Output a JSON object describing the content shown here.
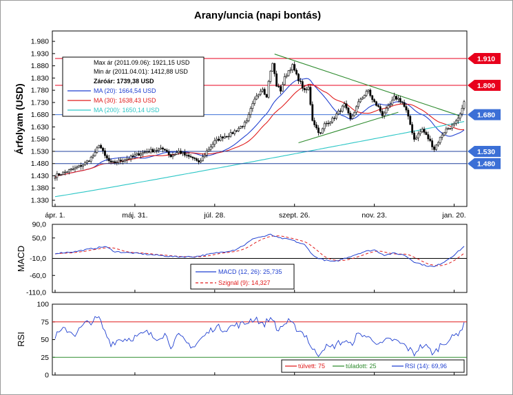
{
  "chart_data": [
    {
      "type": "candlestick",
      "title": "Arany/uncia (napi bontás)",
      "ylabel": "Árfolyam (USD)",
      "ylim": [
        1330,
        2000
      ],
      "yticks": [
        "1.980",
        "1.930",
        "1.880",
        "1.830",
        "1.780",
        "1.730",
        "1.680",
        "1.630",
        "1.580",
        "1.530",
        "1.480",
        "1.430",
        "1.380",
        "1.330"
      ],
      "ytick_values": [
        1980,
        1930,
        1880,
        1830,
        1780,
        1730,
        1680,
        1630,
        1580,
        1530,
        1480,
        1430,
        1380,
        1330
      ],
      "xticks": [
        "ápr. 1.",
        "máj. 31.",
        "júl. 28.",
        "szept. 26.",
        "nov. 23.",
        "jan. 20."
      ],
      "xtick_index": [
        0,
        40,
        80,
        120,
        160,
        200
      ],
      "n_days": 205,
      "anchors": [
        [
          0,
          1430
        ],
        [
          5,
          1445
        ],
        [
          10,
          1460
        ],
        [
          15,
          1480
        ],
        [
          20,
          1520
        ],
        [
          22,
          1560
        ],
        [
          25,
          1510
        ],
        [
          28,
          1480
        ],
        [
          32,
          1490
        ],
        [
          38,
          1505
        ],
        [
          42,
          1520
        ],
        [
          46,
          1530
        ],
        [
          50,
          1535
        ],
        [
          55,
          1540
        ],
        [
          58,
          1510
        ],
        [
          62,
          1530
        ],
        [
          66,
          1510
        ],
        [
          70,
          1500
        ],
        [
          72,
          1480
        ],
        [
          76,
          1530
        ],
        [
          80,
          1570
        ],
        [
          84,
          1590
        ],
        [
          88,
          1600
        ],
        [
          92,
          1625
        ],
        [
          96,
          1650
        ],
        [
          98,
          1700
        ],
        [
          101,
          1760
        ],
        [
          104,
          1790
        ],
        [
          106,
          1750
        ],
        [
          107,
          1820
        ],
        [
          109,
          1890
        ],
        [
          111,
          1800
        ],
        [
          113,
          1780
        ],
        [
          115,
          1830
        ],
        [
          117,
          1860
        ],
        [
          119,
          1880
        ],
        [
          121,
          1840
        ],
        [
          123,
          1810
        ],
        [
          125,
          1775
        ],
        [
          127,
          1790
        ],
        [
          129,
          1660
        ],
        [
          131,
          1625
        ],
        [
          133,
          1600
        ],
        [
          135,
          1640
        ],
        [
          137,
          1650
        ],
        [
          139,
          1660
        ],
        [
          142,
          1690
        ],
        [
          145,
          1720
        ],
        [
          148,
          1660
        ],
        [
          151,
          1710
        ],
        [
          153,
          1745
        ],
        [
          155,
          1760
        ],
        [
          157,
          1780
        ],
        [
          159,
          1740
        ],
        [
          162,
          1710
        ],
        [
          164,
          1680
        ],
        [
          166,
          1700
        ],
        [
          168,
          1720
        ],
        [
          170,
          1750
        ],
        [
          172,
          1745
        ],
        [
          174,
          1730
        ],
        [
          176,
          1695
        ],
        [
          178,
          1640
        ],
        [
          180,
          1580
        ],
        [
          182,
          1600
        ],
        [
          184,
          1620
        ],
        [
          186,
          1595
        ],
        [
          188,
          1570
        ],
        [
          190,
          1540
        ],
        [
          192,
          1570
        ],
        [
          194,
          1600
        ],
        [
          196,
          1620
        ],
        [
          198,
          1630
        ],
        [
          200,
          1640
        ],
        [
          202,
          1660
        ],
        [
          204,
          1700
        ],
        [
          205,
          1740
        ]
      ],
      "hlines": [
        {
          "value": 1910,
          "label": "1.910",
          "color": "#e8001c",
          "label_color": "#e8001c"
        },
        {
          "value": 1800,
          "label": "1.800",
          "color": "#e8001c",
          "label_color": "#e8001c"
        },
        {
          "value": 1680,
          "label": "1.680",
          "color": "#3b6fd6",
          "label_color": "#3b6fd6"
        },
        {
          "value": 1530,
          "label": "1.530",
          "color": "#1f3f9c",
          "label_color": "#3b6fd6"
        },
        {
          "value": 1480,
          "label": "1.480",
          "color": "#1f3f9c",
          "label_color": "#3b6fd6"
        }
      ],
      "info": {
        "max": "Max ár (2011.09.06): 1921,15 USD",
        "min": "Min ár (2011.04.01): 1412,88 USD",
        "close": "Záróár: 1739,38 USD",
        "ma20": "MA (20): 1664,54 USD",
        "ma30": "MA (30): 1638,43 USD",
        "ma200": "MA (200): 1650,14 USD"
      },
      "colors": {
        "candle": "#000000",
        "ma20": "#1f3fd0",
        "ma30": "#e01a1a",
        "ma200": "#2bc6c6",
        "trend": "#2e8b2e"
      }
    },
    {
      "type": "line",
      "ylabel": "MACD",
      "ylim": [
        -110,
        90
      ],
      "yticks": [
        "90,0",
        "50,0",
        "-10,0",
        "-60,0",
        "-110,0"
      ],
      "ytick_values": [
        90,
        50,
        -10,
        -60,
        -110
      ],
      "series": [
        {
          "name": "MACD (12, 26): 25,735",
          "color": "#1f3fd0"
        },
        {
          "name": "Szignál (9): 14,327",
          "color": "#e01a1a"
        }
      ],
      "anchors": [
        [
          0,
          5
        ],
        [
          10,
          10
        ],
        [
          20,
          20
        ],
        [
          25,
          25
        ],
        [
          30,
          10
        ],
        [
          40,
          5
        ],
        [
          50,
          0
        ],
        [
          60,
          -5
        ],
        [
          70,
          -5
        ],
        [
          75,
          0
        ],
        [
          80,
          5
        ],
        [
          90,
          15
        ],
        [
          95,
          30
        ],
        [
          100,
          50
        ],
        [
          105,
          55
        ],
        [
          108,
          60
        ],
        [
          112,
          50
        ],
        [
          118,
          45
        ],
        [
          125,
          30
        ],
        [
          130,
          -5
        ],
        [
          135,
          -15
        ],
        [
          140,
          -20
        ],
        [
          145,
          -10
        ],
        [
          150,
          0
        ],
        [
          155,
          10
        ],
        [
          160,
          15
        ],
        [
          165,
          0
        ],
        [
          170,
          5
        ],
        [
          175,
          0
        ],
        [
          180,
          -20
        ],
        [
          185,
          -30
        ],
        [
          190,
          -35
        ],
        [
          195,
          -20
        ],
        [
          200,
          0
        ],
        [
          205,
          25
        ]
      ]
    },
    {
      "type": "line",
      "ylabel": "RSI",
      "ylim": [
        0,
        100
      ],
      "yticks": [
        "100",
        "75",
        "50",
        "25",
        "0"
      ],
      "ytick_values": [
        100,
        75,
        50,
        25,
        0
      ],
      "series": [
        {
          "name": "túlvett: 75",
          "color": "#e01a1a",
          "value": 75
        },
        {
          "name": "túladott: 25",
          "color": "#2e8b2e",
          "value": 25
        },
        {
          "name": "RSI (14): 69,96",
          "color": "#1f3fd0"
        }
      ],
      "anchors": [
        [
          0,
          55
        ],
        [
          5,
          65
        ],
        [
          10,
          58
        ],
        [
          15,
          72
        ],
        [
          20,
          78
        ],
        [
          22,
          80
        ],
        [
          25,
          60
        ],
        [
          28,
          45
        ],
        [
          32,
          50
        ],
        [
          38,
          52
        ],
        [
          42,
          55
        ],
        [
          46,
          60
        ],
        [
          50,
          52
        ],
        [
          55,
          58
        ],
        [
          58,
          42
        ],
        [
          62,
          55
        ],
        [
          66,
          45
        ],
        [
          70,
          40
        ],
        [
          72,
          48
        ],
        [
          76,
          58
        ],
        [
          80,
          68
        ],
        [
          85,
          65
        ],
        [
          90,
          70
        ],
        [
          95,
          72
        ],
        [
          98,
          78
        ],
        [
          101,
          80
        ],
        [
          104,
          70
        ],
        [
          107,
          78
        ],
        [
          109,
          82
        ],
        [
          111,
          62
        ],
        [
          114,
          70
        ],
        [
          117,
          75
        ],
        [
          120,
          68
        ],
        [
          123,
          62
        ],
        [
          126,
          55
        ],
        [
          129,
          35
        ],
        [
          132,
          30
        ],
        [
          135,
          40
        ],
        [
          138,
          38
        ],
        [
          142,
          45
        ],
        [
          145,
          48
        ],
        [
          148,
          42
        ],
        [
          151,
          55
        ],
        [
          154,
          58
        ],
        [
          157,
          52
        ],
        [
          160,
          50
        ],
        [
          163,
          42
        ],
        [
          166,
          48
        ],
        [
          169,
          50
        ],
        [
          172,
          46
        ],
        [
          175,
          42
        ],
        [
          178,
          35
        ],
        [
          180,
          30
        ],
        [
          182,
          38
        ],
        [
          185,
          42
        ],
        [
          188,
          35
        ],
        [
          190,
          30
        ],
        [
          193,
          42
        ],
        [
          196,
          48
        ],
        [
          199,
          52
        ],
        [
          202,
          60
        ],
        [
          205,
          70
        ]
      ]
    }
  ]
}
